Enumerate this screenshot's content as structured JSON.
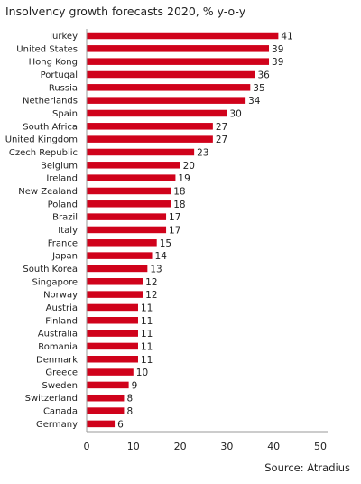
{
  "colors": {
    "bar": "#d0021b",
    "axis": "#999999",
    "text": "#222222"
  },
  "source": "Source: Atradius",
  "chart_data": {
    "type": "bar",
    "orientation": "horizontal",
    "title": "Insolvency growth forecasts 2020, % y-o-y",
    "categories": [
      "Turkey",
      "United States",
      "Hong Kong",
      "Portugal",
      "Russia",
      "Netherlands",
      "Spain",
      "South Africa",
      "United Kingdom",
      "Czech Republic",
      "Belgium",
      "Ireland",
      "New Zealand",
      "Poland",
      "Brazil",
      "Italy",
      "France",
      "Japan",
      "South Korea",
      "Singapore",
      "Norway",
      "Austria",
      "Finland",
      "Australia",
      "Romania",
      "Denmark",
      "Greece",
      "Sweden",
      "Switzerland",
      "Canada",
      "Germany"
    ],
    "values": [
      41,
      39,
      39,
      36,
      35,
      34,
      30,
      27,
      27,
      23,
      20,
      19,
      18,
      18,
      17,
      17,
      15,
      14,
      13,
      12,
      12,
      11,
      11,
      11,
      11,
      11,
      10,
      9,
      8,
      8,
      6
    ],
    "xlim": [
      0,
      50
    ],
    "xticks": [
      0,
      10,
      20,
      30,
      40,
      50
    ],
    "grid": false,
    "legend": "none",
    "data_labels": true
  }
}
